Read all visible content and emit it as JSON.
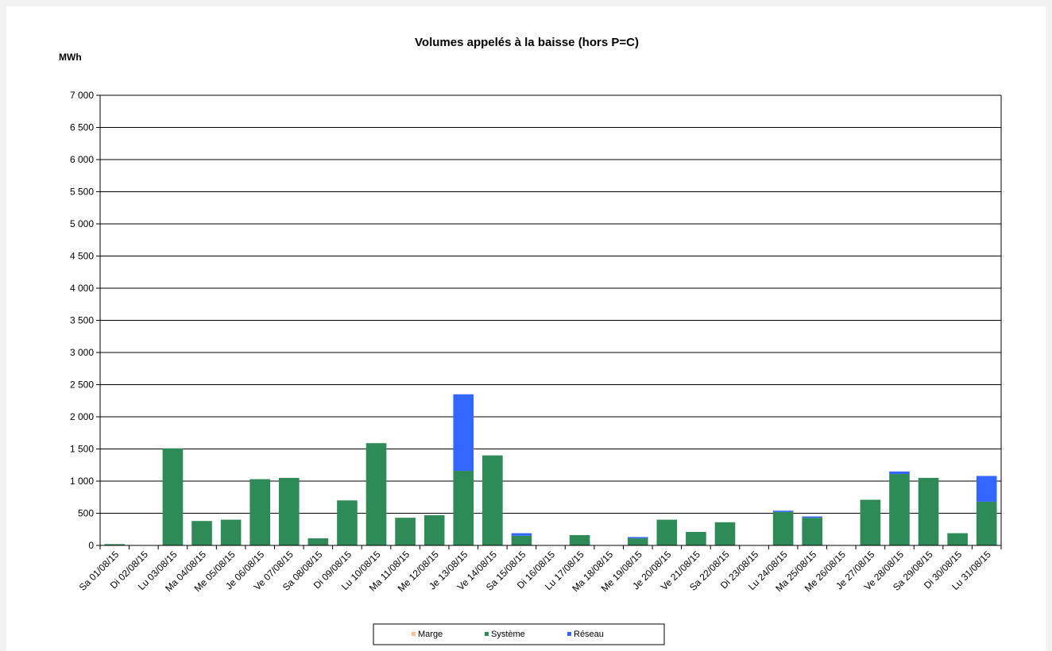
{
  "chart_data": {
    "type": "bar",
    "stacked": true,
    "title": "Volumes appelés à la baisse (hors P=C)",
    "ylabel": "MWh",
    "xlabel": "",
    "ylim": [
      0,
      7000
    ],
    "y_ticks": [
      0,
      500,
      1000,
      1500,
      2000,
      2500,
      3000,
      3500,
      4000,
      4500,
      5000,
      5500,
      6000,
      6500,
      7000
    ],
    "y_tick_labels": [
      "0",
      "500",
      "1 000",
      "1 500",
      "2 000",
      "2 500",
      "3 000",
      "3 500",
      "4 000",
      "4 500",
      "5 000",
      "5 500",
      "6 000",
      "6 500",
      "7 000"
    ],
    "grid": true,
    "legend_position": "bottom",
    "categories": [
      "Sa 01/08/15",
      "Di 02/08/15",
      "Lu 03/08/15",
      "Ma 04/08/15",
      "Me 05/08/15",
      "Je 06/08/15",
      "Ve 07/08/15",
      "Sa 08/08/15",
      "Di 09/08/15",
      "Lu 10/08/15",
      "Ma 11/08/15",
      "Me 12/08/15",
      "Je 13/08/15",
      "Ve 14/08/15",
      "Sa 15/08/15",
      "Di 16/08/15",
      "Lu 17/08/15",
      "Ma 18/08/15",
      "Me 19/08/15",
      "Je 20/08/15",
      "Ve 21/08/15",
      "Sa 22/08/15",
      "Di 23/08/15",
      "Lu 24/08/15",
      "Ma 25/08/15",
      "Me 26/08/15",
      "Je 27/08/15",
      "Ve 28/08/15",
      "Sa 29/08/15",
      "Di 30/08/15",
      "Lu 31/08/15"
    ],
    "series": [
      {
        "name": "Marge",
        "color": "#fac090",
        "values": [
          0,
          0,
          0,
          0,
          0,
          0,
          0,
          0,
          0,
          0,
          0,
          0,
          0,
          0,
          0,
          0,
          0,
          0,
          0,
          0,
          0,
          0,
          0,
          0,
          0,
          0,
          0,
          0,
          0,
          0,
          0
        ]
      },
      {
        "name": "Système",
        "color": "#2e8b57",
        "values": [
          20,
          0,
          1510,
          380,
          400,
          1030,
          1050,
          110,
          700,
          1590,
          430,
          470,
          1160,
          1400,
          150,
          0,
          160,
          0,
          110,
          400,
          210,
          360,
          0,
          520,
          430,
          0,
          710,
          1110,
          1050,
          190,
          680
        ]
      },
      {
        "name": "Réseau",
        "color": "#3366ff",
        "values": [
          0,
          0,
          0,
          0,
          0,
          0,
          0,
          0,
          0,
          0,
          0,
          0,
          1190,
          0,
          40,
          0,
          0,
          0,
          20,
          0,
          0,
          0,
          0,
          20,
          20,
          0,
          0,
          40,
          0,
          0,
          400
        ]
      }
    ]
  }
}
